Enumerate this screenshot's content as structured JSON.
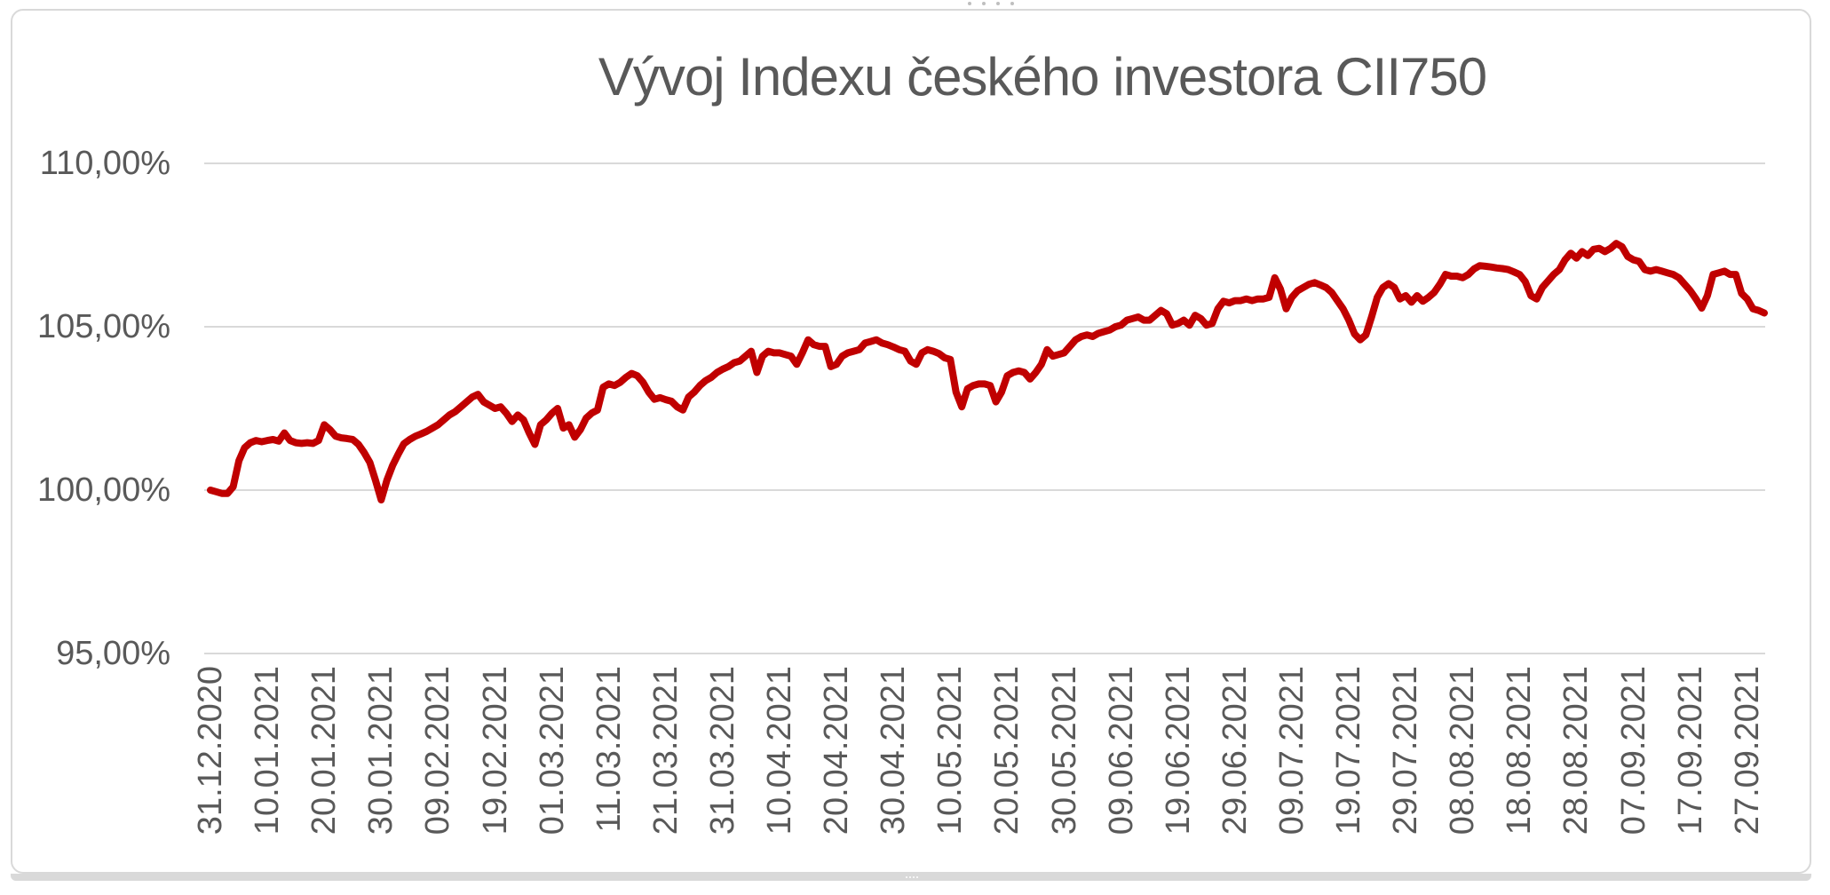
{
  "chart_data": {
    "type": "line",
    "title": "Vývoj Indexu českého investora CII750",
    "grid": true,
    "legend": false,
    "gridline_color": "#D9D9D9",
    "label_color": "#595959",
    "y_axis": {
      "tick_labels": [
        "110,00%",
        "105,00%",
        "100,00%",
        "95,00%"
      ],
      "tick_values": [
        110,
        105,
        100,
        95
      ],
      "ylim": [
        95,
        110
      ],
      "unit": "%"
    },
    "x_axis": {
      "tick_labels": [
        "31.12.2020",
        "10.01.2021",
        "20.01.2021",
        "30.01.2021",
        "09.02.2021",
        "19.02.2021",
        "01.03.2021",
        "11.03.2021",
        "21.03.2021",
        "31.03.2021",
        "10.04.2021",
        "20.04.2021",
        "30.04.2021",
        "10.05.2021",
        "20.05.2021",
        "30.05.2021",
        "09.06.2021",
        "19.06.2021",
        "29.06.2021",
        "09.07.2021",
        "19.07.2021",
        "29.07.2021",
        "08.08.2021",
        "18.08.2021",
        "28.08.2021",
        "07.09.2021",
        "17.09.2021",
        "27.09.2021"
      ],
      "tick_interval_days": 10,
      "range_days": [
        0,
        273
      ]
    },
    "series": [
      {
        "name": "CII750",
        "color": "#C00000",
        "points": [
          [
            0,
            100
          ],
          [
            1,
            99.95
          ],
          [
            2,
            99.9
          ],
          [
            3,
            99.9
          ],
          [
            4,
            100.1
          ],
          [
            5,
            100.9
          ],
          [
            6,
            101.3
          ],
          [
            7,
            101.45
          ],
          [
            8,
            101.52
          ],
          [
            9,
            101.48
          ],
          [
            10,
            101.52
          ],
          [
            11,
            101.55
          ],
          [
            12,
            101.5
          ],
          [
            13,
            101.75
          ],
          [
            14,
            101.52
          ],
          [
            15,
            101.45
          ],
          [
            16,
            101.43
          ],
          [
            17,
            101.45
          ],
          [
            18,
            101.43
          ],
          [
            19,
            101.52
          ],
          [
            20,
            102
          ],
          [
            21,
            101.85
          ],
          [
            22,
            101.65
          ],
          [
            23,
            101.6
          ],
          [
            24,
            101.58
          ],
          [
            25,
            101.55
          ],
          [
            26,
            101.4
          ],
          [
            27,
            101.15
          ],
          [
            28,
            100.85
          ],
          [
            29,
            100.3
          ],
          [
            30,
            99.7
          ],
          [
            31,
            100.3
          ],
          [
            32,
            100.75
          ],
          [
            33,
            101.1
          ],
          [
            34,
            101.42
          ],
          [
            35,
            101.55
          ],
          [
            36,
            101.65
          ],
          [
            37,
            101.72
          ],
          [
            38,
            101.8
          ],
          [
            39,
            101.9
          ],
          [
            40,
            102
          ],
          [
            41,
            102.15
          ],
          [
            42,
            102.3
          ],
          [
            43,
            102.4
          ],
          [
            44,
            102.55
          ],
          [
            45,
            102.7
          ],
          [
            46,
            102.85
          ],
          [
            47,
            102.93
          ],
          [
            48,
            102.7
          ],
          [
            49,
            102.6
          ],
          [
            50,
            102.5
          ],
          [
            51,
            102.55
          ],
          [
            52,
            102.35
          ],
          [
            53,
            102.1
          ],
          [
            54,
            102.3
          ],
          [
            55,
            102.15
          ],
          [
            56,
            101.75
          ],
          [
            57,
            101.4
          ],
          [
            58,
            102
          ],
          [
            59,
            102.15
          ],
          [
            60,
            102.35
          ],
          [
            61,
            102.5
          ],
          [
            62,
            101.9
          ],
          [
            63,
            102
          ],
          [
            64,
            101.62
          ],
          [
            65,
            101.85
          ],
          [
            66,
            102.2
          ],
          [
            67,
            102.36
          ],
          [
            68,
            102.45
          ],
          [
            69,
            103.15
          ],
          [
            70,
            103.25
          ],
          [
            71,
            103.2
          ],
          [
            72,
            103.3
          ],
          [
            73,
            103.45
          ],
          [
            74,
            103.57
          ],
          [
            75,
            103.5
          ],
          [
            76,
            103.3
          ],
          [
            77,
            103
          ],
          [
            78,
            102.78
          ],
          [
            79,
            102.83
          ],
          [
            80,
            102.77
          ],
          [
            81,
            102.72
          ],
          [
            82,
            102.55
          ],
          [
            83,
            102.45
          ],
          [
            84,
            102.85
          ],
          [
            85,
            103
          ],
          [
            86,
            103.2
          ],
          [
            87,
            103.35
          ],
          [
            88,
            103.45
          ],
          [
            89,
            103.6
          ],
          [
            90,
            103.7
          ],
          [
            91,
            103.78
          ],
          [
            92,
            103.9
          ],
          [
            93,
            103.95
          ],
          [
            94,
            104.1
          ],
          [
            95,
            104.25
          ],
          [
            96,
            103.6
          ],
          [
            97,
            104.1
          ],
          [
            98,
            104.25
          ],
          [
            99,
            104.2
          ],
          [
            100,
            104.2
          ],
          [
            101,
            104.15
          ],
          [
            102,
            104.1
          ],
          [
            103,
            103.85
          ],
          [
            104,
            104.2
          ],
          [
            105,
            104.6
          ],
          [
            106,
            104.45
          ],
          [
            107,
            104.4
          ],
          [
            108,
            104.4
          ],
          [
            109,
            103.78
          ],
          [
            110,
            103.85
          ],
          [
            111,
            104.1
          ],
          [
            112,
            104.2
          ],
          [
            113,
            104.25
          ],
          [
            114,
            104.3
          ],
          [
            115,
            104.5
          ],
          [
            116,
            104.55
          ],
          [
            117,
            104.6
          ],
          [
            118,
            104.5
          ],
          [
            119,
            104.45
          ],
          [
            120,
            104.38
          ],
          [
            121,
            104.3
          ],
          [
            122,
            104.25
          ],
          [
            123,
            103.95
          ],
          [
            124,
            103.85
          ],
          [
            125,
            104.2
          ],
          [
            126,
            104.3
          ],
          [
            127,
            104.25
          ],
          [
            128,
            104.18
          ],
          [
            129,
            104.05
          ],
          [
            130,
            104
          ],
          [
            131,
            103
          ],
          [
            132,
            102.55
          ],
          [
            133,
            103.1
          ],
          [
            134,
            103.2
          ],
          [
            135,
            103.25
          ],
          [
            136,
            103.25
          ],
          [
            137,
            103.2
          ],
          [
            138,
            102.7
          ],
          [
            139,
            103
          ],
          [
            140,
            103.5
          ],
          [
            141,
            103.6
          ],
          [
            142,
            103.65
          ],
          [
            143,
            103.6
          ],
          [
            144,
            103.4
          ],
          [
            145,
            103.6
          ],
          [
            146,
            103.85
          ],
          [
            147,
            104.3
          ],
          [
            148,
            104.1
          ],
          [
            149,
            104.15
          ],
          [
            150,
            104.2
          ],
          [
            151,
            104.4
          ],
          [
            152,
            104.6
          ],
          [
            153,
            104.7
          ],
          [
            154,
            104.75
          ],
          [
            155,
            104.7
          ],
          [
            156,
            104.8
          ],
          [
            157,
            104.85
          ],
          [
            158,
            104.9
          ],
          [
            159,
            105
          ],
          [
            160,
            105.05
          ],
          [
            161,
            105.2
          ],
          [
            162,
            105.25
          ],
          [
            163,
            105.3
          ],
          [
            164,
            105.2
          ],
          [
            165,
            105.2
          ],
          [
            166,
            105.35
          ],
          [
            167,
            105.5
          ],
          [
            168,
            105.4
          ],
          [
            169,
            105.05
          ],
          [
            170,
            105.1
          ],
          [
            171,
            105.2
          ],
          [
            172,
            105.05
          ],
          [
            173,
            105.35
          ],
          [
            174,
            105.25
          ],
          [
            175,
            105.05
          ],
          [
            176,
            105.1
          ],
          [
            177,
            105.55
          ],
          [
            178,
            105.78
          ],
          [
            179,
            105.73
          ],
          [
            180,
            105.8
          ],
          [
            181,
            105.8
          ],
          [
            182,
            105.85
          ],
          [
            183,
            105.8
          ],
          [
            184,
            105.85
          ],
          [
            185,
            105.85
          ],
          [
            186,
            105.9
          ],
          [
            187,
            106.5
          ],
          [
            188,
            106.15
          ],
          [
            189,
            105.55
          ],
          [
            190,
            105.9
          ],
          [
            191,
            106.1
          ],
          [
            192,
            106.2
          ],
          [
            193,
            106.3
          ],
          [
            194,
            106.35
          ],
          [
            195,
            106.28
          ],
          [
            196,
            106.2
          ],
          [
            197,
            106.05
          ],
          [
            198,
            105.8
          ],
          [
            199,
            105.55
          ],
          [
            200,
            105.2
          ],
          [
            201,
            104.78
          ],
          [
            202,
            104.6
          ],
          [
            203,
            104.75
          ],
          [
            204,
            105.3
          ],
          [
            205,
            105.9
          ],
          [
            206,
            106.2
          ],
          [
            207,
            106.32
          ],
          [
            208,
            106.2
          ],
          [
            209,
            105.85
          ],
          [
            210,
            105.95
          ],
          [
            211,
            105.75
          ],
          [
            212,
            105.95
          ],
          [
            213,
            105.78
          ],
          [
            214,
            105.9
          ],
          [
            215,
            106.05
          ],
          [
            216,
            106.3
          ],
          [
            217,
            106.6
          ],
          [
            218,
            106.55
          ],
          [
            219,
            106.55
          ],
          [
            220,
            106.5
          ],
          [
            221,
            106.6
          ],
          [
            222,
            106.77
          ],
          [
            223,
            106.87
          ],
          [
            224,
            106.85
          ],
          [
            225,
            106.83
          ],
          [
            226,
            106.8
          ],
          [
            227,
            106.78
          ],
          [
            228,
            106.75
          ],
          [
            229,
            106.68
          ],
          [
            230,
            106.6
          ],
          [
            231,
            106.38
          ],
          [
            232,
            105.95
          ],
          [
            233,
            105.85
          ],
          [
            234,
            106.2
          ],
          [
            235,
            106.4
          ],
          [
            236,
            106.6
          ],
          [
            237,
            106.75
          ],
          [
            238,
            107.05
          ],
          [
            239,
            107.25
          ],
          [
            240,
            107.1
          ],
          [
            241,
            107.3
          ],
          [
            242,
            107.18
          ],
          [
            243,
            107.37
          ],
          [
            244,
            107.4
          ],
          [
            245,
            107.3
          ],
          [
            246,
            107.4
          ],
          [
            247,
            107.55
          ],
          [
            248,
            107.45
          ],
          [
            249,
            107.15
          ],
          [
            250,
            107.05
          ],
          [
            251,
            107
          ],
          [
            252,
            106.75
          ],
          [
            253,
            106.7
          ],
          [
            254,
            106.75
          ],
          [
            255,
            106.7
          ],
          [
            256,
            106.65
          ],
          [
            257,
            106.6
          ],
          [
            258,
            106.5
          ],
          [
            259,
            106.3
          ],
          [
            260,
            106.1
          ],
          [
            261,
            105.85
          ],
          [
            262,
            105.57
          ],
          [
            263,
            105.95
          ],
          [
            264,
            106.6
          ],
          [
            265,
            106.65
          ],
          [
            266,
            106.7
          ],
          [
            267,
            106.6
          ],
          [
            268,
            106.6
          ],
          [
            269,
            106.02
          ],
          [
            270,
            105.85
          ],
          [
            271,
            105.55
          ],
          [
            272,
            105.5
          ],
          [
            273,
            105.42
          ]
        ]
      }
    ]
  }
}
